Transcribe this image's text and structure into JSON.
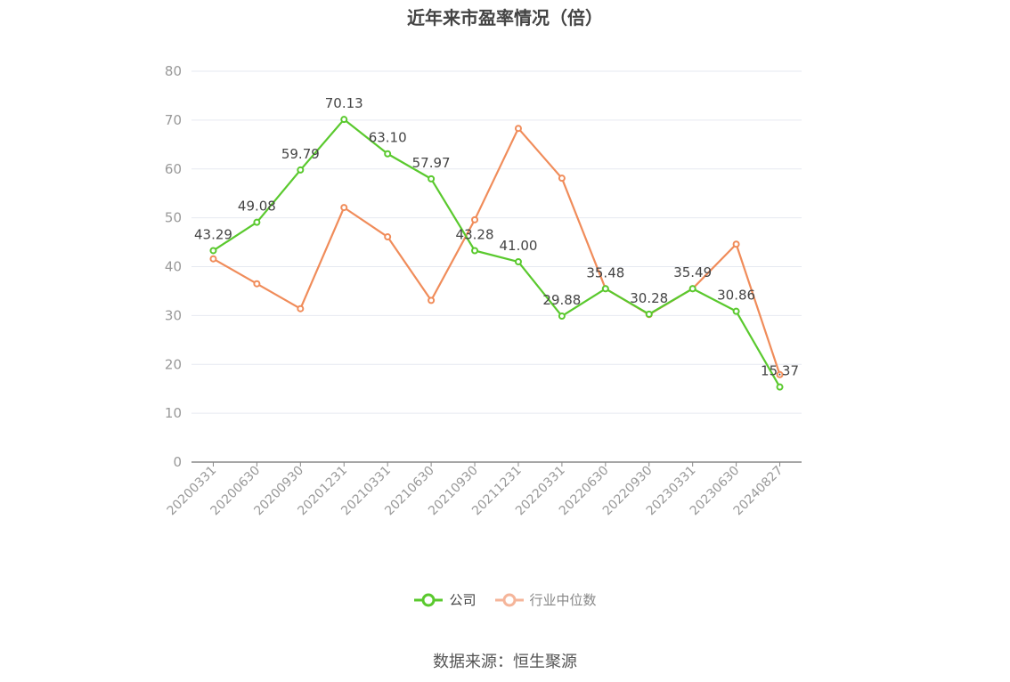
{
  "title": "近年来市盈率情况（倍）",
  "source": "数据来源：恒生聚源",
  "colors": {
    "company": "#5ac92e",
    "industry": "#f08c5a",
    "industry_legend": "#f5b59a",
    "grid": "#e6e9f0",
    "axis": "#999999"
  },
  "chart_data": {
    "type": "line",
    "title": "近年来市盈率情况（倍）",
    "xlabel": "",
    "ylabel": "",
    "ylim": [
      0,
      80
    ],
    "yticks": [
      0,
      10,
      20,
      30,
      40,
      50,
      60,
      70,
      80
    ],
    "grid": true,
    "legend_position": "bottom",
    "categories": [
      "20200331",
      "20200630",
      "20200930",
      "20201231",
      "20210331",
      "20210630",
      "20210930",
      "20211231",
      "20220331",
      "20220630",
      "20220930",
      "20230331",
      "20230630",
      "20240827"
    ],
    "series": [
      {
        "name": "公司",
        "color": "#5ac92e",
        "values": [
          43.29,
          49.08,
          59.79,
          70.13,
          63.1,
          57.97,
          43.28,
          41.0,
          29.88,
          35.48,
          30.28,
          35.49,
          30.86,
          15.37
        ],
        "labels": [
          "43.29",
          "49.08",
          "59.79",
          "70.13",
          "63.10",
          "57.97",
          "43.28",
          "41.00",
          "29.88",
          "35.48",
          "30.28",
          "35.49",
          "30.86",
          "15.37"
        ]
      },
      {
        "name": "行业中位数",
        "color": "#f08c5a",
        "values": [
          41.6,
          36.5,
          31.4,
          52.1,
          46.1,
          33.1,
          49.6,
          68.3,
          58.1,
          35.5,
          30.2,
          35.5,
          44.6,
          17.9
        ]
      }
    ]
  }
}
